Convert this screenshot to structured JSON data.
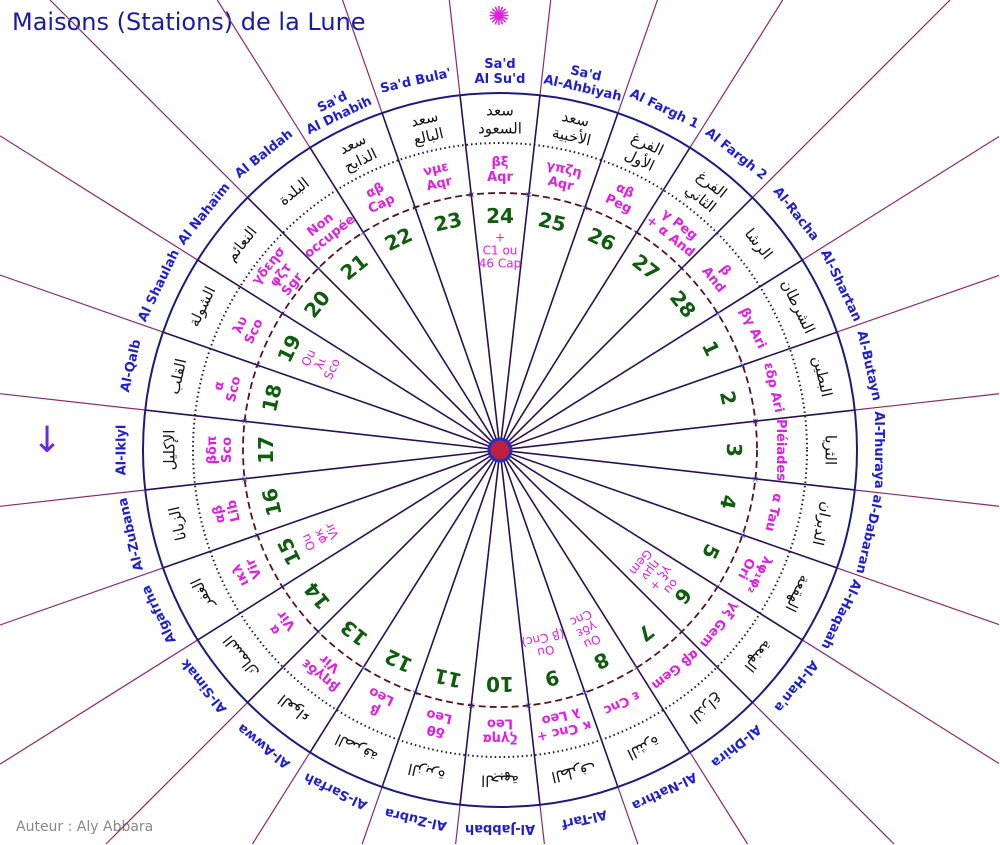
{
  "title": "Maisons (Stations) de la Lune",
  "author": "Auteur : Aly Abbara",
  "icons": {
    "top": "sun-star-icon",
    "left": "arrow-down-icon"
  },
  "colors": {
    "names": "#1f1fd0",
    "stars": "#e020e0",
    "numbers": "#0f5c0f",
    "circle": "#1a1a80"
  },
  "direction": "clockwise, station 24 at top",
  "stations": [
    {
      "number": "1",
      "name": [
        "Al-Shartan"
      ],
      "arabic": [
        "الشرطان"
      ],
      "stars": [
        "βγ Ari"
      ]
    },
    {
      "number": "2",
      "name": [
        "Al-Butayn"
      ],
      "arabic": [
        "البطين"
      ],
      "stars": [
        "εδρ Ari"
      ]
    },
    {
      "number": "3",
      "name": [
        "Al-Thuraya"
      ],
      "arabic": [
        "الثريا"
      ],
      "stars": [
        "Pléiades"
      ]
    },
    {
      "number": "4",
      "name": [
        "al-Dabaran"
      ],
      "arabic": [
        "الدبران"
      ],
      "stars": [
        "α Tau"
      ]
    },
    {
      "number": "5",
      "name": [
        "Al-Haqaah"
      ],
      "arabic": [
        "الهقعة"
      ],
      "stars": [
        "λφ₁φ₂",
        "Ori"
      ]
    },
    {
      "number": "6",
      "name": [
        "Al-Han'a"
      ],
      "arabic": [
        "الهنعة"
      ],
      "stars": [
        "γξ Gem"
      ],
      "inner": [
        "ou",
        "γξ +",
        "ημν",
        "Gem"
      ]
    },
    {
      "number": "7",
      "name": [
        "Al-Dhira"
      ],
      "arabic": [
        "الذراع"
      ],
      "stars": [
        "αβ Gem"
      ]
    },
    {
      "number": "8",
      "name": [
        "Al-Nathra"
      ],
      "arabic": [
        "النثرة"
      ],
      "stars": [
        "ε Cnc"
      ],
      "inner": [
        "Ou",
        "γδε",
        "Cnc"
      ]
    },
    {
      "number": "9",
      "name": [
        "Al-Tarf"
      ],
      "arabic": [
        "الطرف"
      ],
      "stars": [
        "κ Cnc +",
        "λ Leo"
      ],
      "inner": [
        "Ou",
        "(β Cnc)"
      ]
    },
    {
      "number": "10",
      "name": [
        "Al-Jabbah"
      ],
      "arabic": [
        "الجبهة"
      ],
      "stars": [
        "ζγηα",
        "Leo"
      ]
    },
    {
      "number": "11",
      "name": [
        "Al-Zubra"
      ],
      "arabic": [
        "الزبرة"
      ],
      "stars": [
        "δθ",
        "Leo"
      ]
    },
    {
      "number": "12",
      "name": [
        "Al-Sarfah"
      ],
      "arabic": [
        "الصرفة"
      ],
      "stars": [
        "β",
        "Leo"
      ]
    },
    {
      "number": "13",
      "name": [
        "Al-Awwa"
      ],
      "arabic": [
        "العواء"
      ],
      "stars": [
        "βηγδε",
        "Vir"
      ]
    },
    {
      "number": "14",
      "name": [
        "Al-Simak"
      ],
      "arabic": [
        "السماك"
      ],
      "stars": [
        "α",
        "Vir"
      ]
    },
    {
      "number": "15",
      "name": [
        "Algafrha"
      ],
      "arabic": [
        "الغفر"
      ],
      "stars": [
        "ικλ",
        "Vir"
      ],
      "inner": [
        "Ou",
        "φκ",
        "Vir"
      ]
    },
    {
      "number": "16",
      "name": [
        "Al-Zubana"
      ],
      "arabic": [
        "الزبانا"
      ],
      "stars": [
        "αβ",
        "Lib"
      ]
    },
    {
      "number": "17",
      "name": [
        "Al-Iklyl"
      ],
      "arabic": [
        "الإكليل"
      ],
      "stars": [
        "βδπ",
        "Sco"
      ]
    },
    {
      "number": "18",
      "name": [
        "Al-Qalb"
      ],
      "arabic": [
        "القلب"
      ],
      "stars": [
        "α",
        "Sco"
      ]
    },
    {
      "number": "19",
      "name": [
        "Al Shaulah"
      ],
      "arabic": [
        "الشولة"
      ],
      "stars": [
        "λυ",
        "Sco"
      ],
      "inner": [
        "Ou",
        "λι",
        "Sco"
      ]
    },
    {
      "number": "20",
      "name": [
        "Al Nahaïm"
      ],
      "arabic": [
        "النعائم"
      ],
      "stars": [
        "γδεησ",
        "φζτ",
        "Sgr"
      ]
    },
    {
      "number": "21",
      "name": [
        "Al Baldah"
      ],
      "arabic": [
        "البلدة"
      ],
      "stars": [
        "Non",
        "occupée"
      ]
    },
    {
      "number": "22",
      "name": [
        "Sa'd",
        "Al Dhabih"
      ],
      "arabic": [
        "سعد",
        "الذابح"
      ],
      "stars": [
        "αβ",
        "Cap"
      ]
    },
    {
      "number": "23",
      "name": [
        "Sa'd Bula'"
      ],
      "arabic": [
        "سعد",
        "البالع"
      ],
      "stars": [
        "νμε",
        "Aqr"
      ]
    },
    {
      "number": "24",
      "name": [
        "Sa'd",
        "Al Su'd"
      ],
      "arabic": [
        "سعد",
        "السعود"
      ],
      "stars": [
        "βξ",
        "Aqr"
      ],
      "inner": [
        "+",
        "C1 ou",
        "46 Cap"
      ]
    },
    {
      "number": "25",
      "name": [
        "Sa'd",
        "Al-Ahbiyah"
      ],
      "arabic": [
        "سعد",
        "الأخبية"
      ],
      "stars": [
        "γπζη",
        "Aqr"
      ]
    },
    {
      "number": "26",
      "name": [
        "Al Fargh 1"
      ],
      "arabic": [
        "الفرغ",
        "الأول"
      ],
      "stars": [
        "αβ",
        "Peg"
      ]
    },
    {
      "number": "27",
      "name": [
        "Al Fargh 2"
      ],
      "arabic": [
        "الفرغ",
        "الثاني"
      ],
      "stars": [
        "γ Peg",
        "+ α And"
      ]
    },
    {
      "number": "28",
      "name": [
        "Al-Racha"
      ],
      "arabic": [
        "الرشا"
      ],
      "stars": [
        "β",
        "And"
      ]
    }
  ]
}
